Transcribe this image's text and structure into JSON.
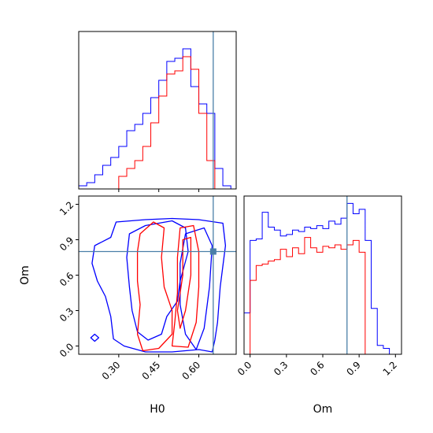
{
  "colors": {
    "blue": "#0000ff",
    "red": "#ff0000",
    "truth": "#4a7fa8",
    "axis": "#000000"
  },
  "chart_data": [
    {
      "type": "step-histogram",
      "panel": "H0 marginal",
      "xlabel": "",
      "ylabel": "",
      "xlim": [
        0.15,
        0.74
      ],
      "ylim": [
        0,
        1
      ],
      "truth_x": 0.654,
      "bin_edges": [
        0.15,
        0.18,
        0.21,
        0.24,
        0.27,
        0.3,
        0.33,
        0.36,
        0.39,
        0.42,
        0.45,
        0.48,
        0.51,
        0.54,
        0.57,
        0.6,
        0.63,
        0.66,
        0.69,
        0.72
      ],
      "series": [
        {
          "color": "blue",
          "values": [
            0.02,
            0.04,
            0.09,
            0.15,
            0.2,
            0.27,
            0.37,
            0.41,
            0.48,
            0.58,
            0.69,
            0.81,
            0.83,
            0.89,
            0.65,
            0.54,
            0.48,
            0.13,
            0.02
          ]
        },
        {
          "color": "red",
          "values": [
            0,
            0,
            0,
            0,
            0,
            0.08,
            0.13,
            0.18,
            0.27,
            0.42,
            0.59,
            0.73,
            0.75,
            0.84,
            0.76,
            0.48,
            0.18,
            0,
            0
          ]
        }
      ]
    },
    {
      "type": "step-histogram",
      "panel": "Om marginal",
      "xlabel": "Om",
      "ylabel": "",
      "xlim": [
        -0.05,
        1.25
      ],
      "ylim": [
        0,
        1.07
      ],
      "x_ticks": [
        "0.0",
        "0.3",
        "0.6",
        "0.9",
        "1.2"
      ],
      "truth_x": 0.8,
      "bin_edges": [
        -0.05,
        0.0,
        0.05,
        0.1,
        0.15,
        0.2,
        0.25,
        0.3,
        0.35,
        0.4,
        0.45,
        0.5,
        0.55,
        0.6,
        0.65,
        0.7,
        0.75,
        0.8,
        0.85,
        0.9,
        0.95,
        1.0,
        1.05,
        1.1,
        1.15
      ],
      "series": [
        {
          "color": "blue",
          "values": [
            0.28,
            0.77,
            0.78,
            0.96,
            0.86,
            0.84,
            0.8,
            0.81,
            0.84,
            0.83,
            0.86,
            0.85,
            0.87,
            0.85,
            0.9,
            0.88,
            0.92,
            1.02,
            0.95,
            0.98,
            0.77,
            0.31,
            0.06,
            0.04
          ]
        },
        {
          "color": "red",
          "values": [
            0,
            0.5,
            0.6,
            0.61,
            0.63,
            0.64,
            0.71,
            0.66,
            0.72,
            0.68,
            0.79,
            0.72,
            0.69,
            0.73,
            0.72,
            0.74,
            0.71,
            0.74,
            0.77,
            0.69,
            0,
            0,
            0,
            0
          ]
        }
      ]
    },
    {
      "type": "contour",
      "panel": "H0 vs Om",
      "xlabel": "H0",
      "ylabel": "Om",
      "xlim": [
        0.15,
        0.74
      ],
      "ylim": [
        -0.07,
        1.27
      ],
      "x_ticks": [
        "0.30",
        "0.45",
        "0.60"
      ],
      "y_ticks": [
        "0.0",
        "0.3",
        "0.6",
        "0.9",
        "1.2"
      ],
      "truth_point": [
        0.654,
        0.8
      ],
      "contours": [
        {
          "color": "blue",
          "points": [
            [
              0.28,
              0.06
            ],
            [
              0.27,
              0.25
            ],
            [
              0.25,
              0.42
            ],
            [
              0.22,
              0.55
            ],
            [
              0.2,
              0.7
            ],
            [
              0.21,
              0.85
            ],
            [
              0.27,
              0.92
            ],
            [
              0.29,
              1.05
            ],
            [
              0.4,
              1.07
            ],
            [
              0.5,
              1.08
            ],
            [
              0.6,
              1.07
            ],
            [
              0.69,
              1.04
            ],
            [
              0.7,
              0.85
            ],
            [
              0.68,
              0.5
            ],
            [
              0.67,
              0.2
            ],
            [
              0.66,
              0.05
            ],
            [
              0.65,
              -0.05
            ],
            [
              0.6,
              -0.03
            ],
            [
              0.5,
              -0.05
            ],
            [
              0.4,
              -0.05
            ],
            [
              0.32,
              0.0
            ]
          ]
        },
        {
          "color": "blue",
          "points": [
            [
              0.34,
              0.95
            ],
            [
              0.4,
              1.02
            ],
            [
              0.5,
              1.06
            ],
            [
              0.55,
              1.0
            ],
            [
              0.56,
              0.8
            ],
            [
              0.53,
              0.55
            ],
            [
              0.52,
              0.38
            ],
            [
              0.48,
              0.25
            ],
            [
              0.46,
              0.1
            ],
            [
              0.41,
              0.05
            ],
            [
              0.37,
              0.12
            ],
            [
              0.35,
              0.3
            ],
            [
              0.34,
              0.5
            ],
            [
              0.33,
              0.75
            ]
          ]
        },
        {
          "color": "blue",
          "points": [
            [
              0.55,
              0.95
            ],
            [
              0.62,
              1.0
            ],
            [
              0.65,
              0.85
            ],
            [
              0.64,
              0.5
            ],
            [
              0.62,
              0.15
            ],
            [
              0.59,
              -0.03
            ],
            [
              0.55,
              0.1
            ],
            [
              0.53,
              0.35
            ],
            [
              0.53,
              0.7
            ]
          ]
        },
        {
          "color": "blue",
          "points": [
            [
              0.195,
              0.07
            ],
            [
              0.21,
              0.1
            ],
            [
              0.225,
              0.07
            ],
            [
              0.21,
              0.04
            ]
          ]
        },
        {
          "color": "red",
          "points": [
            [
              0.38,
              0.95
            ],
            [
              0.43,
              1.05
            ],
            [
              0.47,
              1.0
            ],
            [
              0.46,
              0.75
            ],
            [
              0.47,
              0.5
            ],
            [
              0.5,
              0.3
            ],
            [
              0.5,
              0.1
            ],
            [
              0.45,
              -0.02
            ],
            [
              0.39,
              -0.04
            ],
            [
              0.37,
              0.1
            ],
            [
              0.38,
              0.35
            ],
            [
              0.37,
              0.55
            ],
            [
              0.37,
              0.8
            ]
          ]
        },
        {
          "color": "red",
          "points": [
            [
              0.53,
              1.0
            ],
            [
              0.58,
              1.02
            ],
            [
              0.6,
              0.8
            ],
            [
              0.6,
              0.5
            ],
            [
              0.59,
              0.2
            ],
            [
              0.56,
              -0.01
            ],
            [
              0.5,
              0.0
            ],
            [
              0.51,
              0.2
            ],
            [
              0.52,
              0.45
            ],
            [
              0.52,
              0.75
            ]
          ]
        },
        {
          "color": "red",
          "points": [
            [
              0.54,
              0.9
            ],
            [
              0.57,
              0.92
            ],
            [
              0.57,
              0.6
            ],
            [
              0.55,
              0.3
            ],
            [
              0.53,
              0.15
            ],
            [
              0.52,
              0.3
            ],
            [
              0.54,
              0.6
            ]
          ]
        }
      ]
    }
  ]
}
